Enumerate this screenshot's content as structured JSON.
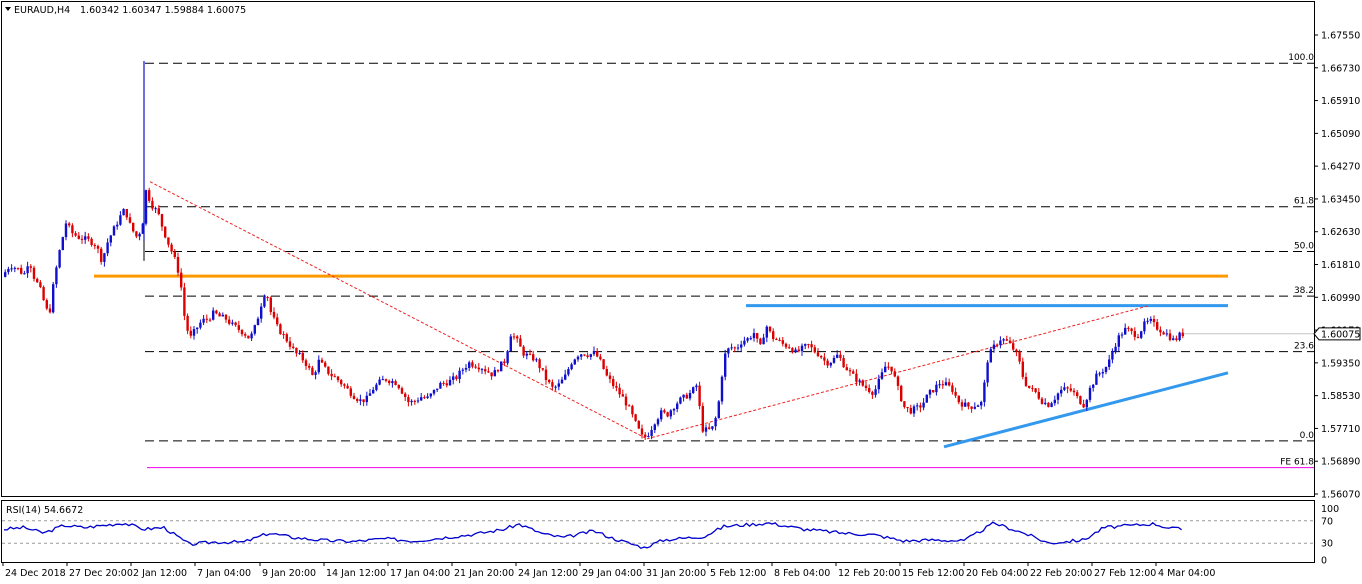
{
  "header": {
    "symbol": "EURAUD,H4",
    "ohlc": "1.60342 1.60347 1.59884 1.60075"
  },
  "price_axis": {
    "ticks": [
      "1.67550",
      "1.66730",
      "1.65910",
      "1.65090",
      "1.64270",
      "1.63450",
      "1.62630",
      "1.61810",
      "1.60990",
      "1.60170",
      "1.59350",
      "1.58530",
      "1.57710",
      "1.56890",
      "1.56070"
    ],
    "current_price": "1.60075"
  },
  "time_axis": {
    "ticks": [
      "24 Dec 2018",
      "27 Dec 20:00",
      "2 Jan 12:00",
      "7 Jan 04:00",
      "9 Jan 20:00",
      "14 Jan 12:00",
      "17 Jan 04:00",
      "21 Jan 20:00",
      "24 Jan 12:00",
      "29 Jan 04:00",
      "31 Jan 20:00",
      "5 Feb 12:00",
      "8 Feb 04:00",
      "12 Feb 20:00",
      "15 Feb 12:00",
      "20 Feb 04:00",
      "22 Feb 20:00",
      "27 Feb 12:00",
      "4 Mar 04:00"
    ]
  },
  "fibonacci": {
    "levels": [
      {
        "label": "100.0",
        "value": 1.66845
      },
      {
        "label": "61.8",
        "value": 1.63255
      },
      {
        "label": "50.0",
        "value": 1.62135
      },
      {
        "label": "38.2",
        "value": 1.6102
      },
      {
        "label": "23.6",
        "value": 1.5963
      },
      {
        "label": "0.0",
        "value": 1.574
      }
    ],
    "expansion": {
      "label": "FE 61.8",
      "value": 1.5673
    }
  },
  "rsi": {
    "title": "RSI(14) 54.6672",
    "ticks": [
      "100",
      "70",
      "30",
      "0"
    ],
    "levels": [
      70,
      30
    ]
  },
  "colors": {
    "bull": "#1010cc",
    "bear": "#dd0000",
    "support_resistance": "#ff9900",
    "trendline": "#3399ee",
    "fib": "#000000",
    "fe": "#ee00ee",
    "channel": "#ee2222",
    "rsi_line": "#0000cc"
  },
  "chart_data": {
    "type": "candlestick",
    "symbol": "EURAUD",
    "timeframe": "H4",
    "ylim": [
      1.5607,
      1.6785
    ],
    "price_path": [
      {
        "x": 0,
        "y": 1.615
      },
      {
        "x": 8,
        "y": 1.618
      },
      {
        "x": 16,
        "y": 1.617
      },
      {
        "x": 22,
        "y": 1.6155
      },
      {
        "x": 27,
        "y": 1.6195
      },
      {
        "x": 32,
        "y": 1.615
      },
      {
        "x": 38,
        "y": 1.612
      },
      {
        "x": 43,
        "y": 1.608
      },
      {
        "x": 47,
        "y": 1.605
      },
      {
        "x": 52,
        "y": 1.614
      },
      {
        "x": 58,
        "y": 1.622
      },
      {
        "x": 64,
        "y": 1.6285
      },
      {
        "x": 70,
        "y": 1.626
      },
      {
        "x": 76,
        "y": 1.625
      },
      {
        "x": 82,
        "y": 1.6245
      },
      {
        "x": 88,
        "y": 1.624
      },
      {
        "x": 94,
        "y": 1.623
      },
      {
        "x": 100,
        "y": 1.619
      },
      {
        "x": 106,
        "y": 1.624
      },
      {
        "x": 112,
        "y": 1.627
      },
      {
        "x": 118,
        "y": 1.63
      },
      {
        "x": 123,
        "y": 1.632
      },
      {
        "x": 128,
        "y": 1.628
      },
      {
        "x": 134,
        "y": 1.625
      },
      {
        "x": 140,
        "y": 1.627
      },
      {
        "x": 144,
        "y": 1.6365
      },
      {
        "x": 150,
        "y": 1.633
      },
      {
        "x": 156,
        "y": 1.631
      },
      {
        "x": 161,
        "y": 1.627
      },
      {
        "x": 167,
        "y": 1.623
      },
      {
        "x": 172,
        "y": 1.62
      },
      {
        "x": 178,
        "y": 1.615
      },
      {
        "x": 183,
        "y": 1.604
      },
      {
        "x": 188,
        "y": 1.5995
      },
      {
        "x": 194,
        "y": 1.602
      },
      {
        "x": 200,
        "y": 1.604
      },
      {
        "x": 206,
        "y": 1.6045
      },
      {
        "x": 212,
        "y": 1.606
      },
      {
        "x": 218,
        "y": 1.605
      },
      {
        "x": 224,
        "y": 1.6045
      },
      {
        "x": 230,
        "y": 1.603
      },
      {
        "x": 236,
        "y": 1.602
      },
      {
        "x": 242,
        "y": 1.601
      },
      {
        "x": 248,
        "y": 1.5995
      },
      {
        "x": 254,
        "y": 1.603
      },
      {
        "x": 259,
        "y": 1.608
      },
      {
        "x": 264,
        "y": 1.612
      },
      {
        "x": 269,
        "y": 1.606
      },
      {
        "x": 275,
        "y": 1.6025
      },
      {
        "x": 281,
        "y": 1.6005
      },
      {
        "x": 287,
        "y": 1.5985
      },
      {
        "x": 293,
        "y": 1.596
      },
      {
        "x": 299,
        "y": 1.595
      },
      {
        "x": 305,
        "y": 1.593
      },
      {
        "x": 311,
        "y": 1.59
      },
      {
        "x": 317,
        "y": 1.594
      },
      {
        "x": 323,
        "y": 1.592
      },
      {
        "x": 329,
        "y": 1.5905
      },
      {
        "x": 335,
        "y": 1.5895
      },
      {
        "x": 341,
        "y": 1.588
      },
      {
        "x": 347,
        "y": 1.5865
      },
      {
        "x": 353,
        "y": 1.585
      },
      {
        "x": 359,
        "y": 1.584
      },
      {
        "x": 365,
        "y": 1.5845
      },
      {
        "x": 371,
        "y": 1.587
      },
      {
        "x": 377,
        "y": 1.5885
      },
      {
        "x": 383,
        "y": 1.5895
      },
      {
        "x": 389,
        "y": 1.589
      },
      {
        "x": 395,
        "y": 1.5885
      },
      {
        "x": 401,
        "y": 1.586
      },
      {
        "x": 407,
        "y": 1.5835
      },
      {
        "x": 413,
        "y": 1.584
      },
      {
        "x": 419,
        "y": 1.585
      },
      {
        "x": 425,
        "y": 1.5845
      },
      {
        "x": 431,
        "y": 1.586
      },
      {
        "x": 437,
        "y": 1.588
      },
      {
        "x": 443,
        "y": 1.5885
      },
      {
        "x": 449,
        "y": 1.589
      },
      {
        "x": 455,
        "y": 1.59
      },
      {
        "x": 461,
        "y": 1.592
      },
      {
        "x": 467,
        "y": 1.5935
      },
      {
        "x": 473,
        "y": 1.593
      },
      {
        "x": 479,
        "y": 1.5925
      },
      {
        "x": 485,
        "y": 1.5915
      },
      {
        "x": 491,
        "y": 1.5905
      },
      {
        "x": 497,
        "y": 1.5925
      },
      {
        "x": 503,
        "y": 1.594
      },
      {
        "x": 509,
        "y": 1.601
      },
      {
        "x": 515,
        "y": 1.599
      },
      {
        "x": 521,
        "y": 1.596
      },
      {
        "x": 527,
        "y": 1.595
      },
      {
        "x": 533,
        "y": 1.5945
      },
      {
        "x": 539,
        "y": 1.592
      },
      {
        "x": 545,
        "y": 1.589
      },
      {
        "x": 551,
        "y": 1.587
      },
      {
        "x": 557,
        "y": 1.588
      },
      {
        "x": 563,
        "y": 1.59
      },
      {
        "x": 569,
        "y": 1.5935
      },
      {
        "x": 575,
        "y": 1.5955
      },
      {
        "x": 581,
        "y": 1.596
      },
      {
        "x": 587,
        "y": 1.5955
      },
      {
        "x": 593,
        "y": 1.596
      },
      {
        "x": 599,
        "y": 1.5935
      },
      {
        "x": 605,
        "y": 1.59
      },
      {
        "x": 611,
        "y": 1.588
      },
      {
        "x": 617,
        "y": 1.586
      },
      {
        "x": 623,
        "y": 1.584
      },
      {
        "x": 629,
        "y": 1.581
      },
      {
        "x": 635,
        "y": 1.5775
      },
      {
        "x": 641,
        "y": 1.5745
      },
      {
        "x": 647,
        "y": 1.576
      },
      {
        "x": 653,
        "y": 1.579
      },
      {
        "x": 659,
        "y": 1.581
      },
      {
        "x": 665,
        "y": 1.5805
      },
      {
        "x": 671,
        "y": 1.5825
      },
      {
        "x": 677,
        "y": 1.584
      },
      {
        "x": 683,
        "y": 1.585
      },
      {
        "x": 689,
        "y": 1.586
      },
      {
        "x": 695,
        "y": 1.588
      },
      {
        "x": 700,
        "y": 1.577
      },
      {
        "x": 706,
        "y": 1.5765
      },
      {
        "x": 712,
        "y": 1.5775
      },
      {
        "x": 717,
        "y": 1.584
      },
      {
        "x": 722,
        "y": 1.595
      },
      {
        "x": 728,
        "y": 1.5975
      },
      {
        "x": 734,
        "y": 1.597
      },
      {
        "x": 740,
        "y": 1.599
      },
      {
        "x": 746,
        "y": 1.5995
      },
      {
        "x": 752,
        "y": 1.601
      },
      {
        "x": 758,
        "y": 1.597
      },
      {
        "x": 764,
        "y": 1.603
      },
      {
        "x": 770,
        "y": 1.6
      },
      {
        "x": 776,
        "y": 1.599
      },
      {
        "x": 782,
        "y": 1.598
      },
      {
        "x": 788,
        "y": 1.5975
      },
      {
        "x": 794,
        "y": 1.596
      },
      {
        "x": 800,
        "y": 1.597
      },
      {
        "x": 806,
        "y": 1.598
      },
      {
        "x": 812,
        "y": 1.5965
      },
      {
        "x": 818,
        "y": 1.5955
      },
      {
        "x": 824,
        "y": 1.5935
      },
      {
        "x": 830,
        "y": 1.594
      },
      {
        "x": 836,
        "y": 1.5955
      },
      {
        "x": 842,
        "y": 1.593
      },
      {
        "x": 848,
        "y": 1.591
      },
      {
        "x": 854,
        "y": 1.5895
      },
      {
        "x": 860,
        "y": 1.588
      },
      {
        "x": 866,
        "y": 1.587
      },
      {
        "x": 872,
        "y": 1.586
      },
      {
        "x": 878,
        "y": 1.5895
      },
      {
        "x": 884,
        "y": 1.593
      },
      {
        "x": 890,
        "y": 1.592
      },
      {
        "x": 896,
        "y": 1.587
      },
      {
        "x": 902,
        "y": 1.5825
      },
      {
        "x": 908,
        "y": 1.5815
      },
      {
        "x": 914,
        "y": 1.582
      },
      {
        "x": 920,
        "y": 1.583
      },
      {
        "x": 926,
        "y": 1.5855
      },
      {
        "x": 932,
        "y": 1.587
      },
      {
        "x": 938,
        "y": 1.5885
      },
      {
        "x": 944,
        "y": 1.588
      },
      {
        "x": 950,
        "y": 1.587
      },
      {
        "x": 956,
        "y": 1.584
      },
      {
        "x": 962,
        "y": 1.583
      },
      {
        "x": 968,
        "y": 1.5825
      },
      {
        "x": 974,
        "y": 1.583
      },
      {
        "x": 980,
        "y": 1.5835
      },
      {
        "x": 986,
        "y": 1.595
      },
      {
        "x": 992,
        "y": 1.5975
      },
      {
        "x": 998,
        "y": 1.5995
      },
      {
        "x": 1004,
        "y": 1.599
      },
      {
        "x": 1010,
        "y": 1.5975
      },
      {
        "x": 1016,
        "y": 1.595
      },
      {
        "x": 1022,
        "y": 1.589
      },
      {
        "x": 1028,
        "y": 1.587
      },
      {
        "x": 1034,
        "y": 1.586
      },
      {
        "x": 1040,
        "y": 1.584
      },
      {
        "x": 1046,
        "y": 1.583
      },
      {
        "x": 1052,
        "y": 1.5845
      },
      {
        "x": 1058,
        "y": 1.5865
      },
      {
        "x": 1064,
        "y": 1.587
      },
      {
        "x": 1070,
        "y": 1.5865
      },
      {
        "x": 1076,
        "y": 1.5845
      },
      {
        "x": 1082,
        "y": 1.583
      },
      {
        "x": 1088,
        "y": 1.587
      },
      {
        "x": 1094,
        "y": 1.59
      },
      {
        "x": 1100,
        "y": 1.5915
      },
      {
        "x": 1106,
        "y": 1.593
      },
      {
        "x": 1112,
        "y": 1.5975
      },
      {
        "x": 1118,
        "y": 1.6005
      },
      {
        "x": 1124,
        "y": 1.602
      },
      {
        "x": 1130,
        "y": 1.601
      },
      {
        "x": 1136,
        "y": 1.6005
      },
      {
        "x": 1142,
        "y": 1.603
      },
      {
        "x": 1148,
        "y": 1.604
      },
      {
        "x": 1154,
        "y": 1.6025
      },
      {
        "x": 1160,
        "y": 1.6015
      },
      {
        "x": 1166,
        "y": 1.6005
      },
      {
        "x": 1172,
        "y": 1.599
      },
      {
        "x": 1179,
        "y": 1.60075
      }
    ],
    "horizontal_levels": [
      {
        "name": "orange-resistance",
        "value": 1.6152
      },
      {
        "name": "blue-resistance",
        "value": 1.6078
      }
    ],
    "trendlines": [
      {
        "name": "blue-support-line",
        "from": {
          "x": 940,
          "y": 1.5725
        },
        "to": {
          "x": 1228,
          "y": 1.591
        }
      },
      {
        "name": "red-channel-upper",
        "from": {
          "x": 146,
          "y": 1.6388
        },
        "to": {
          "x": 643,
          "y": 1.5745
        }
      },
      {
        "name": "red-channel-lower",
        "from": {
          "x": 643,
          "y": 1.5745
        },
        "to": {
          "x": 1145,
          "y": 1.6078
        }
      }
    ],
    "rsi_path": [
      {
        "x": 0,
        "y": 55
      },
      {
        "x": 20,
        "y": 58
      },
      {
        "x": 40,
        "y": 48
      },
      {
        "x": 60,
        "y": 62
      },
      {
        "x": 80,
        "y": 58
      },
      {
        "x": 100,
        "y": 62
      },
      {
        "x": 120,
        "y": 66
      },
      {
        "x": 140,
        "y": 55
      },
      {
        "x": 160,
        "y": 58
      },
      {
        "x": 185,
        "y": 28
      },
      {
        "x": 210,
        "y": 32
      },
      {
        "x": 240,
        "y": 32
      },
      {
        "x": 265,
        "y": 48
      },
      {
        "x": 290,
        "y": 40
      },
      {
        "x": 320,
        "y": 35
      },
      {
        "x": 350,
        "y": 33
      },
      {
        "x": 380,
        "y": 38
      },
      {
        "x": 410,
        "y": 34
      },
      {
        "x": 440,
        "y": 40
      },
      {
        "x": 470,
        "y": 46
      },
      {
        "x": 500,
        "y": 55
      },
      {
        "x": 515,
        "y": 64
      },
      {
        "x": 540,
        "y": 46
      },
      {
        "x": 560,
        "y": 40
      },
      {
        "x": 590,
        "y": 52
      },
      {
        "x": 610,
        "y": 38
      },
      {
        "x": 640,
        "y": 22
      },
      {
        "x": 660,
        "y": 36
      },
      {
        "x": 700,
        "y": 42
      },
      {
        "x": 720,
        "y": 60
      },
      {
        "x": 765,
        "y": 66
      },
      {
        "x": 800,
        "y": 55
      },
      {
        "x": 840,
        "y": 48
      },
      {
        "x": 870,
        "y": 45
      },
      {
        "x": 900,
        "y": 34
      },
      {
        "x": 930,
        "y": 36
      },
      {
        "x": 960,
        "y": 34
      },
      {
        "x": 990,
        "y": 66
      },
      {
        "x": 1020,
        "y": 48
      },
      {
        "x": 1045,
        "y": 30
      },
      {
        "x": 1080,
        "y": 36
      },
      {
        "x": 1100,
        "y": 58
      },
      {
        "x": 1130,
        "y": 62
      },
      {
        "x": 1150,
        "y": 65
      },
      {
        "x": 1165,
        "y": 57
      },
      {
        "x": 1179,
        "y": 54.6672
      }
    ]
  }
}
